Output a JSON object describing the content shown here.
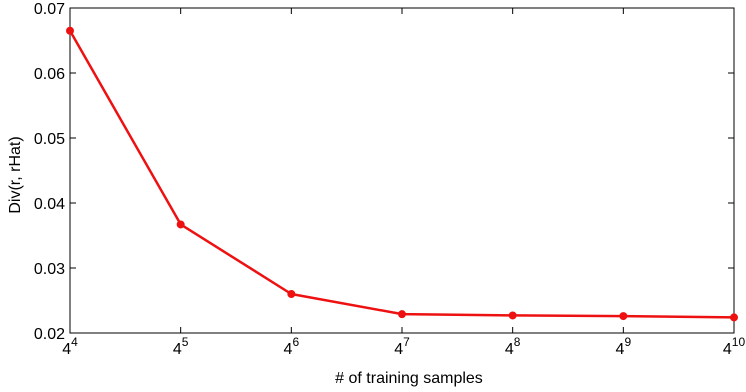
{
  "chart_data": {
    "type": "line",
    "title": "",
    "xlabel": "# of training samples",
    "ylabel": "Div(r, rHat)",
    "x_scale": "log4",
    "x": [
      256,
      1024,
      4096,
      16384,
      65536,
      262144,
      1048576
    ],
    "x_tick_base": "4",
    "x_tick_exponents": [
      "4",
      "5",
      "6",
      "7",
      "8",
      "9",
      "10"
    ],
    "xlim": [
      256,
      1048576
    ],
    "ylim": [
      0.02,
      0.07
    ],
    "y_ticks": [
      0.02,
      0.03,
      0.04,
      0.05,
      0.06,
      0.07
    ],
    "y_tick_labels": [
      "0.02",
      "0.03",
      "0.04",
      "0.05",
      "0.06",
      "0.07"
    ],
    "grid": false,
    "series": [
      {
        "color": "#ee1111",
        "marker": "circle",
        "values": [
          0.0665,
          0.0367,
          0.026,
          0.0229,
          0.0227,
          0.0226,
          0.0224
        ]
      }
    ]
  }
}
